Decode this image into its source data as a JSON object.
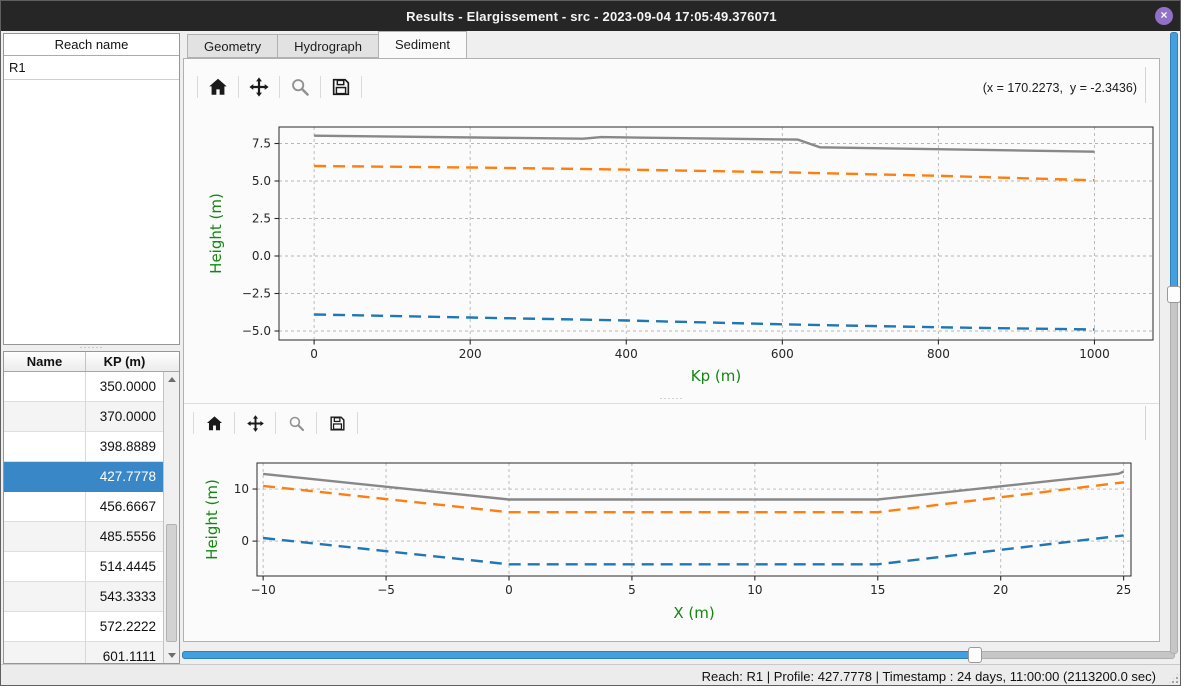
{
  "window": {
    "title": "Results - Elargissement - src - 2023-09-04 17:05:49.376071",
    "close_glyph": "×"
  },
  "reach_panel": {
    "header": "Reach name",
    "items": [
      "R1"
    ]
  },
  "profile_table": {
    "columns": [
      "Name",
      "KP (m)"
    ],
    "rows": [
      {
        "name": "",
        "kp": "350.0000",
        "selected": false
      },
      {
        "name": "",
        "kp": "370.0000",
        "selected": false
      },
      {
        "name": "",
        "kp": "398.8889",
        "selected": false
      },
      {
        "name": "",
        "kp": "427.7778",
        "selected": true
      },
      {
        "name": "",
        "kp": "456.6667",
        "selected": false
      },
      {
        "name": "",
        "kp": "485.5556",
        "selected": false
      },
      {
        "name": "",
        "kp": "514.4445",
        "selected": false
      },
      {
        "name": "",
        "kp": "543.3333",
        "selected": false
      },
      {
        "name": "",
        "kp": "572.2222",
        "selected": false
      },
      {
        "name": "",
        "kp": "601.1111",
        "selected": false
      }
    ],
    "selection_color": "#3a87c8"
  },
  "tabs": [
    {
      "label": "Geometry",
      "active": false
    },
    {
      "label": "Hydrograph",
      "active": false
    },
    {
      "label": "Sediment",
      "active": true
    }
  ],
  "toolbar": {
    "icons": [
      "home",
      "pan",
      "zoom",
      "save"
    ],
    "coordinates": "(x = 170.2273,  y = -2.3436)"
  },
  "sliders": {
    "horizontal": {
      "fraction": 0.803
    },
    "vertical": {
      "fraction": 0.42
    }
  },
  "status_bar": {
    "text": "Reach: R1 | Profile: 427.7778 | Timestamp : 24 days, 11:00:00 (2113200.0 sec)"
  },
  "chart_data": [
    {
      "type": "line",
      "title": "",
      "xlabel": "Kp (m)",
      "ylabel": "Height (m)",
      "label_color": "#12880f",
      "grid": true,
      "legend": null,
      "xlim": [
        -45,
        1075
      ],
      "ylim": [
        -5.6,
        8.6
      ],
      "xticks": {
        "values": [
          0,
          200,
          400,
          600,
          800,
          1000
        ],
        "labels": [
          "0",
          "200",
          "400",
          "600",
          "800",
          "1000"
        ]
      },
      "yticks": {
        "values": [
          7.5,
          5.0,
          2.5,
          0.0,
          -2.5,
          -5.0
        ],
        "labels": [
          "7.5",
          "5.0",
          "2.5",
          "0.0",
          "−2.5",
          "−5.0"
        ]
      },
      "series": [
        {
          "name": "gray-solid-line",
          "color": "#888888",
          "dash": null,
          "width": 2.4,
          "x": [
            0,
            345,
            368,
            620,
            648,
            1000
          ],
          "y": [
            8.02,
            7.82,
            7.93,
            7.76,
            7.25,
            6.95
          ]
        },
        {
          "name": "orange-dashed-line",
          "color": "#ff7f0e",
          "dash": "12 7",
          "width": 2.4,
          "x": [
            0,
            200,
            400,
            600,
            800,
            1000
          ],
          "y": [
            6.0,
            5.9,
            5.76,
            5.58,
            5.35,
            5.05
          ]
        },
        {
          "name": "blue-dashed-line",
          "color": "#1f77b4",
          "dash": "12 7",
          "width": 2.4,
          "x": [
            0,
            200,
            400,
            600,
            800,
            1000
          ],
          "y": [
            -3.9,
            -4.1,
            -4.3,
            -4.55,
            -4.75,
            -4.9
          ]
        }
      ]
    },
    {
      "type": "line",
      "title": "",
      "xlabel": "X (m)",
      "ylabel": "Height (m)",
      "label_color": "#12880f",
      "grid": true,
      "legend": null,
      "xlim": [
        -10.25,
        25.3
      ],
      "ylim": [
        -6.7,
        15.0
      ],
      "xticks": {
        "values": [
          -10,
          -5,
          0,
          5,
          10,
          15,
          20,
          25
        ],
        "labels": [
          "−10",
          "−5",
          "0",
          "5",
          "10",
          "15",
          "20",
          "25"
        ]
      },
      "yticks": {
        "values": [
          0,
          10
        ],
        "labels": [
          "0",
          "10"
        ]
      },
      "series": [
        {
          "name": "gray-solid-line",
          "color": "#888888",
          "dash": null,
          "width": 2.4,
          "x": [
            -10,
            0,
            15,
            24.8,
            25
          ],
          "y": [
            12.9,
            8.0,
            8.0,
            12.95,
            13.35
          ]
        },
        {
          "name": "orange-dashed-line",
          "color": "#ff7f0e",
          "dash": "12 7",
          "width": 2.4,
          "x": [
            -10,
            0,
            15,
            25
          ],
          "y": [
            10.6,
            5.55,
            5.55,
            11.3
          ]
        },
        {
          "name": "blue-dashed-line",
          "color": "#1f77b4",
          "dash": "12 7",
          "width": 2.4,
          "x": [
            -10,
            0,
            15,
            25
          ],
          "y": [
            0.6,
            -4.45,
            -4.45,
            1.1
          ]
        }
      ]
    }
  ]
}
